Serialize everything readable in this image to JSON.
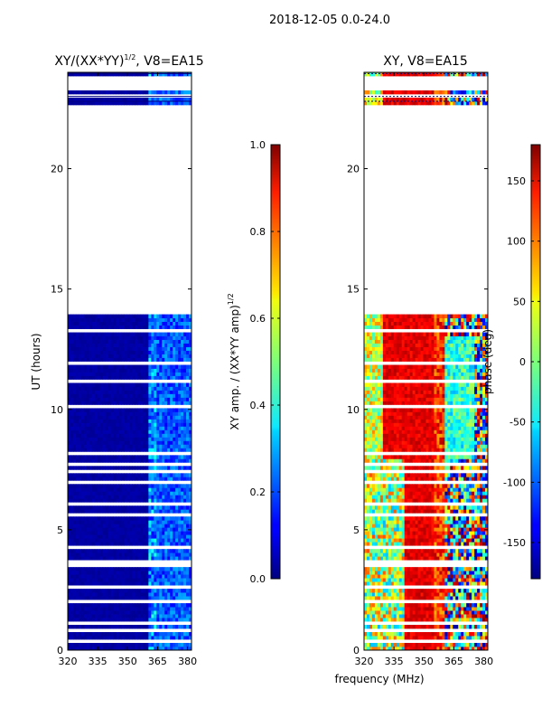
{
  "figure_title": "2018-12-05 0.0-24.0",
  "colors": {
    "line": "#000080",
    "frame": "#000000",
    "background": "#ffffff"
  },
  "chart_data": [
    {
      "type": "heatmap",
      "title_prefix": "XY/(XX*YY)",
      "title_sup": "1/2",
      "title_suffix": ", V8=EA15",
      "xlabel": "",
      "ylabel": "UT (hours)",
      "xlim": [
        320,
        382
      ],
      "ylim": [
        0,
        24
      ],
      "xticks": [
        "320",
        "335",
        "350",
        "365",
        "380"
      ],
      "yticks": [
        "0",
        "5",
        "10",
        "15",
        "20"
      ],
      "flagged_ut_bands": [
        [
          2.5,
          2.7
        ],
        [
          13.9,
          22.7
        ],
        [
          22.9,
          23.1
        ],
        [
          23.2,
          23.9
        ]
      ],
      "colorbar": {
        "label": "XY amp. / (XX*YY amp)",
        "label_sup": "1/2",
        "range": [
          0.0,
          1.0
        ],
        "ticks": [
          "0.0",
          "0.2",
          "0.4",
          "0.6",
          "0.8",
          "1.0"
        ],
        "colormap": "jet"
      }
    },
    {
      "type": "heatmap",
      "title": "XY, V8=EA15",
      "xlabel": "frequency (MHz)",
      "ylabel": "",
      "xlim": [
        320,
        382
      ],
      "ylim": [
        0,
        24
      ],
      "xticks": [
        "320",
        "335",
        "350",
        "365",
        "380"
      ],
      "yticks": [
        "0",
        "5",
        "10",
        "15",
        "20"
      ],
      "flagged_ut_bands": [
        [
          2.5,
          2.7
        ],
        [
          13.9,
          22.7
        ],
        [
          22.9,
          23.1
        ],
        [
          23.2,
          23.9
        ]
      ],
      "colorbar": {
        "label": "phase (deg)",
        "range": [
          -180,
          180
        ],
        "ticks": [
          "-150",
          "-100",
          "-50",
          "0",
          "50",
          "100",
          "150"
        ],
        "colormap": "jet"
      }
    }
  ]
}
